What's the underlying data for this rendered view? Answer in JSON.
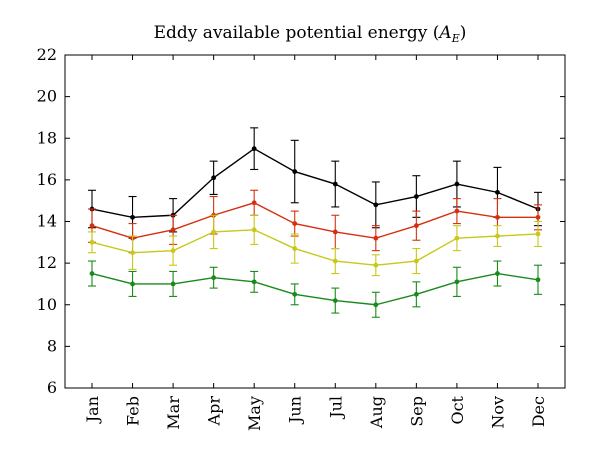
{
  "chart_data": {
    "type": "line",
    "title": "Eddy available potential energy (",
    "title_symbol": "A",
    "title_subscript": "E",
    "title_close": ")",
    "xlabel": "",
    "ylabel": "",
    "categories": [
      "Jan",
      "Feb",
      "Mar",
      "Apr",
      "May",
      "Jun",
      "Jul",
      "Aug",
      "Sep",
      "Oct",
      "Nov",
      "Dec"
    ],
    "ylim": [
      6,
      22
    ],
    "yticks": [
      "6",
      "8",
      "10",
      "12",
      "14",
      "16",
      "18",
      "20",
      "22"
    ],
    "grid": false,
    "legend": "none",
    "series": [
      {
        "color": "#000000",
        "values": [
          14.6,
          14.2,
          14.3,
          16.1,
          17.5,
          16.4,
          15.8,
          14.8,
          15.2,
          15.8,
          15.4,
          14.6
        ],
        "errors": [
          0.9,
          1.0,
          0.8,
          0.8,
          1.0,
          1.5,
          1.1,
          1.1,
          1.0,
          1.1,
          1.2,
          0.8
        ]
      },
      {
        "color": "#d62f0f",
        "values": [
          13.8,
          13.2,
          13.6,
          14.3,
          14.9,
          13.9,
          13.5,
          13.2,
          13.8,
          14.5,
          14.2,
          14.2
        ],
        "errors": [
          0.8,
          0.7,
          0.7,
          0.9,
          0.6,
          0.6,
          0.8,
          0.6,
          0.7,
          0.6,
          0.9,
          0.6
        ]
      },
      {
        "color": "#c8c81a",
        "values": [
          13.0,
          12.5,
          12.6,
          13.5,
          13.6,
          12.7,
          12.1,
          11.9,
          12.1,
          13.2,
          13.3,
          13.4
        ],
        "errors": [
          0.5,
          0.8,
          0.7,
          0.8,
          0.7,
          0.7,
          0.6,
          0.5,
          0.6,
          0.6,
          0.5,
          0.6
        ]
      },
      {
        "color": "#1a8a1a",
        "values": [
          11.5,
          11.0,
          11.0,
          11.3,
          11.1,
          10.5,
          10.2,
          10.0,
          10.5,
          11.1,
          11.5,
          11.2
        ],
        "errors": [
          0.6,
          0.6,
          0.6,
          0.5,
          0.5,
          0.5,
          0.6,
          0.6,
          0.6,
          0.7,
          0.6,
          0.7
        ]
      }
    ]
  }
}
